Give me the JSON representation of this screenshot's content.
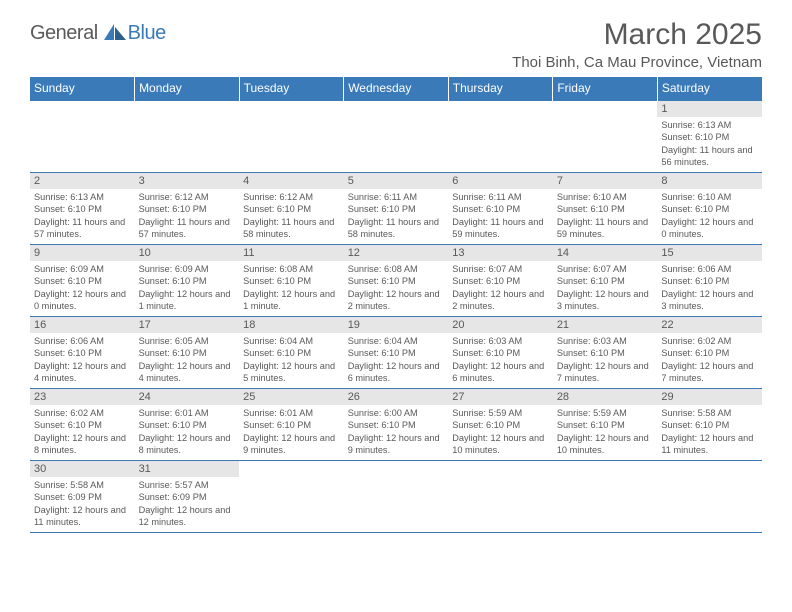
{
  "brand": {
    "general": "General",
    "blue": "Blue"
  },
  "colors": {
    "accent": "#3a7ab8",
    "text": "#595959",
    "daynum_bg": "#e6e6e6",
    "background": "#ffffff"
  },
  "header": {
    "month_title": "March 2025",
    "location": "Thoi Binh, Ca Mau Province, Vietnam"
  },
  "weekdays": [
    "Sunday",
    "Monday",
    "Tuesday",
    "Wednesday",
    "Thursday",
    "Friday",
    "Saturday"
  ],
  "grid": [
    [
      null,
      null,
      null,
      null,
      null,
      null,
      {
        "num": "1",
        "sunrise": "Sunrise: 6:13 AM",
        "sunset": "Sunset: 6:10 PM",
        "daylight": "Daylight: 11 hours and 56 minutes."
      }
    ],
    [
      {
        "num": "2",
        "sunrise": "Sunrise: 6:13 AM",
        "sunset": "Sunset: 6:10 PM",
        "daylight": "Daylight: 11 hours and 57 minutes."
      },
      {
        "num": "3",
        "sunrise": "Sunrise: 6:12 AM",
        "sunset": "Sunset: 6:10 PM",
        "daylight": "Daylight: 11 hours and 57 minutes."
      },
      {
        "num": "4",
        "sunrise": "Sunrise: 6:12 AM",
        "sunset": "Sunset: 6:10 PM",
        "daylight": "Daylight: 11 hours and 58 minutes."
      },
      {
        "num": "5",
        "sunrise": "Sunrise: 6:11 AM",
        "sunset": "Sunset: 6:10 PM",
        "daylight": "Daylight: 11 hours and 58 minutes."
      },
      {
        "num": "6",
        "sunrise": "Sunrise: 6:11 AM",
        "sunset": "Sunset: 6:10 PM",
        "daylight": "Daylight: 11 hours and 59 minutes."
      },
      {
        "num": "7",
        "sunrise": "Sunrise: 6:10 AM",
        "sunset": "Sunset: 6:10 PM",
        "daylight": "Daylight: 11 hours and 59 minutes."
      },
      {
        "num": "8",
        "sunrise": "Sunrise: 6:10 AM",
        "sunset": "Sunset: 6:10 PM",
        "daylight": "Daylight: 12 hours and 0 minutes."
      }
    ],
    [
      {
        "num": "9",
        "sunrise": "Sunrise: 6:09 AM",
        "sunset": "Sunset: 6:10 PM",
        "daylight": "Daylight: 12 hours and 0 minutes."
      },
      {
        "num": "10",
        "sunrise": "Sunrise: 6:09 AM",
        "sunset": "Sunset: 6:10 PM",
        "daylight": "Daylight: 12 hours and 1 minute."
      },
      {
        "num": "11",
        "sunrise": "Sunrise: 6:08 AM",
        "sunset": "Sunset: 6:10 PM",
        "daylight": "Daylight: 12 hours and 1 minute."
      },
      {
        "num": "12",
        "sunrise": "Sunrise: 6:08 AM",
        "sunset": "Sunset: 6:10 PM",
        "daylight": "Daylight: 12 hours and 2 minutes."
      },
      {
        "num": "13",
        "sunrise": "Sunrise: 6:07 AM",
        "sunset": "Sunset: 6:10 PM",
        "daylight": "Daylight: 12 hours and 2 minutes."
      },
      {
        "num": "14",
        "sunrise": "Sunrise: 6:07 AM",
        "sunset": "Sunset: 6:10 PM",
        "daylight": "Daylight: 12 hours and 3 minutes."
      },
      {
        "num": "15",
        "sunrise": "Sunrise: 6:06 AM",
        "sunset": "Sunset: 6:10 PM",
        "daylight": "Daylight: 12 hours and 3 minutes."
      }
    ],
    [
      {
        "num": "16",
        "sunrise": "Sunrise: 6:06 AM",
        "sunset": "Sunset: 6:10 PM",
        "daylight": "Daylight: 12 hours and 4 minutes."
      },
      {
        "num": "17",
        "sunrise": "Sunrise: 6:05 AM",
        "sunset": "Sunset: 6:10 PM",
        "daylight": "Daylight: 12 hours and 4 minutes."
      },
      {
        "num": "18",
        "sunrise": "Sunrise: 6:04 AM",
        "sunset": "Sunset: 6:10 PM",
        "daylight": "Daylight: 12 hours and 5 minutes."
      },
      {
        "num": "19",
        "sunrise": "Sunrise: 6:04 AM",
        "sunset": "Sunset: 6:10 PM",
        "daylight": "Daylight: 12 hours and 6 minutes."
      },
      {
        "num": "20",
        "sunrise": "Sunrise: 6:03 AM",
        "sunset": "Sunset: 6:10 PM",
        "daylight": "Daylight: 12 hours and 6 minutes."
      },
      {
        "num": "21",
        "sunrise": "Sunrise: 6:03 AM",
        "sunset": "Sunset: 6:10 PM",
        "daylight": "Daylight: 12 hours and 7 minutes."
      },
      {
        "num": "22",
        "sunrise": "Sunrise: 6:02 AM",
        "sunset": "Sunset: 6:10 PM",
        "daylight": "Daylight: 12 hours and 7 minutes."
      }
    ],
    [
      {
        "num": "23",
        "sunrise": "Sunrise: 6:02 AM",
        "sunset": "Sunset: 6:10 PM",
        "daylight": "Daylight: 12 hours and 8 minutes."
      },
      {
        "num": "24",
        "sunrise": "Sunrise: 6:01 AM",
        "sunset": "Sunset: 6:10 PM",
        "daylight": "Daylight: 12 hours and 8 minutes."
      },
      {
        "num": "25",
        "sunrise": "Sunrise: 6:01 AM",
        "sunset": "Sunset: 6:10 PM",
        "daylight": "Daylight: 12 hours and 9 minutes."
      },
      {
        "num": "26",
        "sunrise": "Sunrise: 6:00 AM",
        "sunset": "Sunset: 6:10 PM",
        "daylight": "Daylight: 12 hours and 9 minutes."
      },
      {
        "num": "27",
        "sunrise": "Sunrise: 5:59 AM",
        "sunset": "Sunset: 6:10 PM",
        "daylight": "Daylight: 12 hours and 10 minutes."
      },
      {
        "num": "28",
        "sunrise": "Sunrise: 5:59 AM",
        "sunset": "Sunset: 6:10 PM",
        "daylight": "Daylight: 12 hours and 10 minutes."
      },
      {
        "num": "29",
        "sunrise": "Sunrise: 5:58 AM",
        "sunset": "Sunset: 6:10 PM",
        "daylight": "Daylight: 12 hours and 11 minutes."
      }
    ],
    [
      {
        "num": "30",
        "sunrise": "Sunrise: 5:58 AM",
        "sunset": "Sunset: 6:09 PM",
        "daylight": "Daylight: 12 hours and 11 minutes."
      },
      {
        "num": "31",
        "sunrise": "Sunrise: 5:57 AM",
        "sunset": "Sunset: 6:09 PM",
        "daylight": "Daylight: 12 hours and 12 minutes."
      },
      null,
      null,
      null,
      null,
      null
    ]
  ]
}
